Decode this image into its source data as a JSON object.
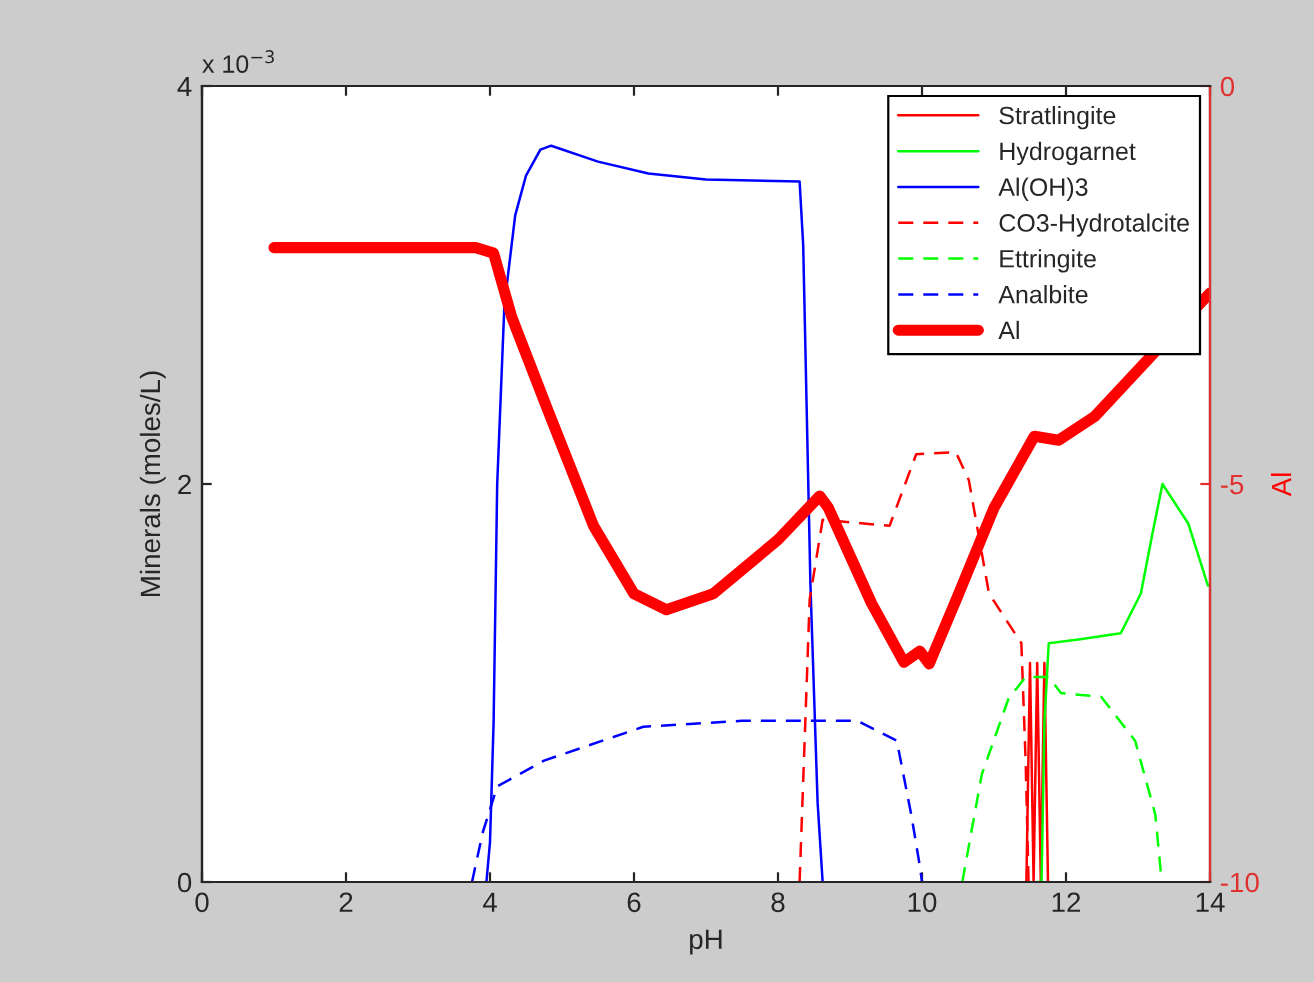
{
  "chart_data": {
    "type": "line",
    "xlabel": "pH",
    "ylabel": "Minerals (moles/L)",
    "y2label": "Al",
    "annotations": [
      "x 10$^{−3}$"
    ],
    "xlim": [
      0,
      14
    ],
    "xticks": [
      0,
      2,
      4,
      6,
      8,
      10,
      12,
      14
    ],
    "ylim": [
      0,
      4
    ],
    "yticks": [
      0,
      2,
      4
    ],
    "y2lim": [
      -10,
      0
    ],
    "y2ticks": [
      -10,
      -5,
      0
    ],
    "grid": false,
    "legend": "top right",
    "series": [
      {
        "name": "Stratlingite",
        "color": "#ff0000",
        "line_style": "solid",
        "x": [
          11.45,
          11.5,
          11.55,
          11.6,
          11.65,
          11.7,
          11.75
        ],
        "values": [
          0,
          1.1,
          0,
          1.1,
          0,
          1.1,
          0
        ]
      },
      {
        "name": "Hydrogarnet",
        "color": "#00ff00",
        "line_style": "solid",
        "x": [
          11.6,
          11.66,
          11.7,
          11.76,
          12.2,
          12.76,
          13.04,
          13.2,
          13.34,
          13.7,
          13.97
        ],
        "values": [
          0,
          0,
          0.8,
          1.2,
          1.22,
          1.25,
          1.45,
          1.75,
          2.0,
          1.8,
          1.49
        ]
      },
      {
        "name": "Al(OH)3",
        "color": "#0000ff",
        "line_style": "solid",
        "x": [
          3.95,
          4.0,
          4.05,
          4.1,
          4.2,
          4.35,
          4.5,
          4.7,
          4.85,
          5.5,
          6.2,
          7.0,
          8.3,
          8.35,
          8.45,
          8.55,
          8.62
        ],
        "values": [
          0,
          0.2,
          0.8,
          2.0,
          2.9,
          3.35,
          3.55,
          3.68,
          3.7,
          3.62,
          3.56,
          3.53,
          3.52,
          3.2,
          1.5,
          0.4,
          0
        ]
      },
      {
        "name": "CO3-Hydrotalcite",
        "color": "#ff0000",
        "line_style": "dashed",
        "x": [
          8.3,
          8.44,
          8.62,
          9.55,
          9.92,
          10.47,
          10.65,
          10.93,
          11.38,
          11.44,
          11.48
        ],
        "values": [
          0,
          1.42,
          1.82,
          1.79,
          2.15,
          2.16,
          2.02,
          1.45,
          1.2,
          0.6,
          0
        ]
      },
      {
        "name": "Ettringite",
        "color": "#00ff00",
        "line_style": "dashed",
        "x": [
          10.56,
          10.83,
          11.2,
          11.44,
          11.76,
          11.93,
          12.49,
          12.96,
          13.24,
          13.33
        ],
        "values": [
          0,
          0.54,
          0.92,
          1.03,
          1.03,
          0.95,
          0.93,
          0.71,
          0.34,
          0
        ]
      },
      {
        "name": "Analbite",
        "color": "#0000ff",
        "line_style": "dashed",
        "x": [
          3.75,
          3.9,
          4.1,
          4.75,
          6.13,
          7.5,
          9.1,
          9.65,
          9.85,
          9.97,
          10.0
        ],
        "values": [
          0,
          0.25,
          0.48,
          0.61,
          0.78,
          0.81,
          0.81,
          0.71,
          0.34,
          0.08,
          0
        ]
      },
      {
        "name": "Al",
        "color": "#ff0000",
        "line_style": "solid",
        "axis": "y2",
        "x": [
          1,
          3.8,
          4.05,
          4.3,
          4.78,
          5.44,
          6.0,
          6.45,
          7.1,
          8.0,
          8.58,
          8.7,
          9.3,
          9.75,
          9.97,
          10.1,
          10.5,
          11.0,
          11.56,
          11.9,
          12.4,
          14.0
        ],
        "values": [
          -2.03,
          -2.03,
          -2.1,
          -2.9,
          -4.02,
          -5.53,
          -6.38,
          -6.58,
          -6.38,
          -5.7,
          -5.15,
          -5.3,
          -6.5,
          -7.24,
          -7.1,
          -7.26,
          -6.4,
          -5.3,
          -4.4,
          -4.45,
          -4.15,
          -2.6
        ]
      }
    ]
  }
}
